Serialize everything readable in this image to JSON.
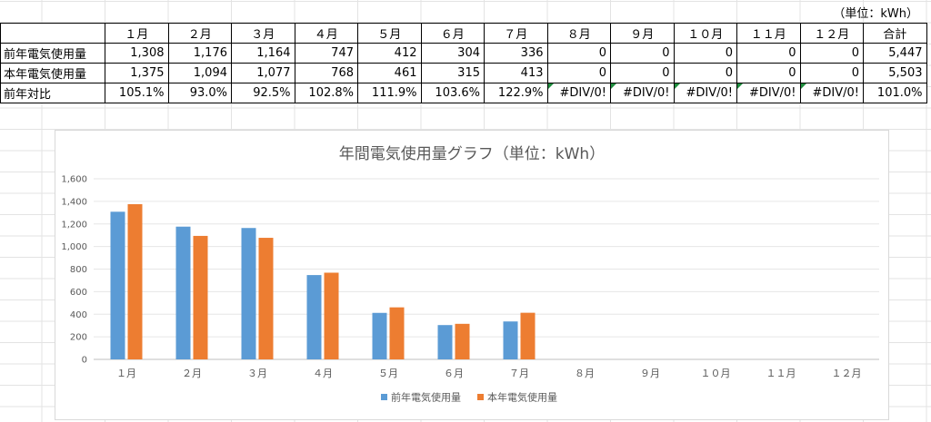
{
  "unit_note": "（単位：kWh）",
  "table": {
    "headers": [
      "",
      "１月",
      "２月",
      "３月",
      "４月",
      "５月",
      "６月",
      "７月",
      "８月",
      "９月",
      "１０月",
      "１１月",
      "１２月",
      "合計"
    ],
    "rows": [
      {
        "label": "前年電気使用量",
        "cells": [
          "1,308",
          "1,176",
          "1,164",
          "747",
          "412",
          "304",
          "336",
          "0",
          "0",
          "0",
          "0",
          "0",
          "5,447"
        ]
      },
      {
        "label": "本年電気使用量",
        "cells": [
          "1,375",
          "1,094",
          "1,077",
          "768",
          "461",
          "315",
          "413",
          "0",
          "0",
          "0",
          "0",
          "0",
          "5,503"
        ]
      },
      {
        "label": "前年対比",
        "cells": [
          "105.1%",
          "93.0%",
          "92.5%",
          "102.8%",
          "111.9%",
          "103.6%",
          "122.9%",
          "#DIV/0!",
          "#DIV/0!",
          "#DIV/0!",
          "#DIV/0!",
          "#DIV/0!",
          "101.0%"
        ]
      }
    ]
  },
  "chart_data": {
    "type": "bar",
    "title": "年間電気使用量グラフ（単位：kWh）",
    "categories": [
      "１月",
      "２月",
      "３月",
      "４月",
      "５月",
      "６月",
      "７月",
      "８月",
      "９月",
      "１０月",
      "１１月",
      "１２月"
    ],
    "series": [
      {
        "name": "前年電気使用量",
        "color": "#5b9bd5",
        "values": [
          1308,
          1176,
          1164,
          747,
          412,
          304,
          336,
          0,
          0,
          0,
          0,
          0
        ]
      },
      {
        "name": "本年電気使用量",
        "color": "#ed7d31",
        "values": [
          1375,
          1094,
          1077,
          768,
          461,
          315,
          413,
          0,
          0,
          0,
          0,
          0
        ]
      }
    ],
    "ylim": [
      0,
      1600
    ],
    "yticks": [
      0,
      200,
      400,
      600,
      800,
      1000,
      1200,
      1400,
      1600
    ],
    "ytick_labels": [
      "0",
      "200",
      "400",
      "600",
      "800",
      "1,000",
      "1,200",
      "1,400",
      "1,600"
    ],
    "grid": true,
    "legend": "bottom"
  }
}
